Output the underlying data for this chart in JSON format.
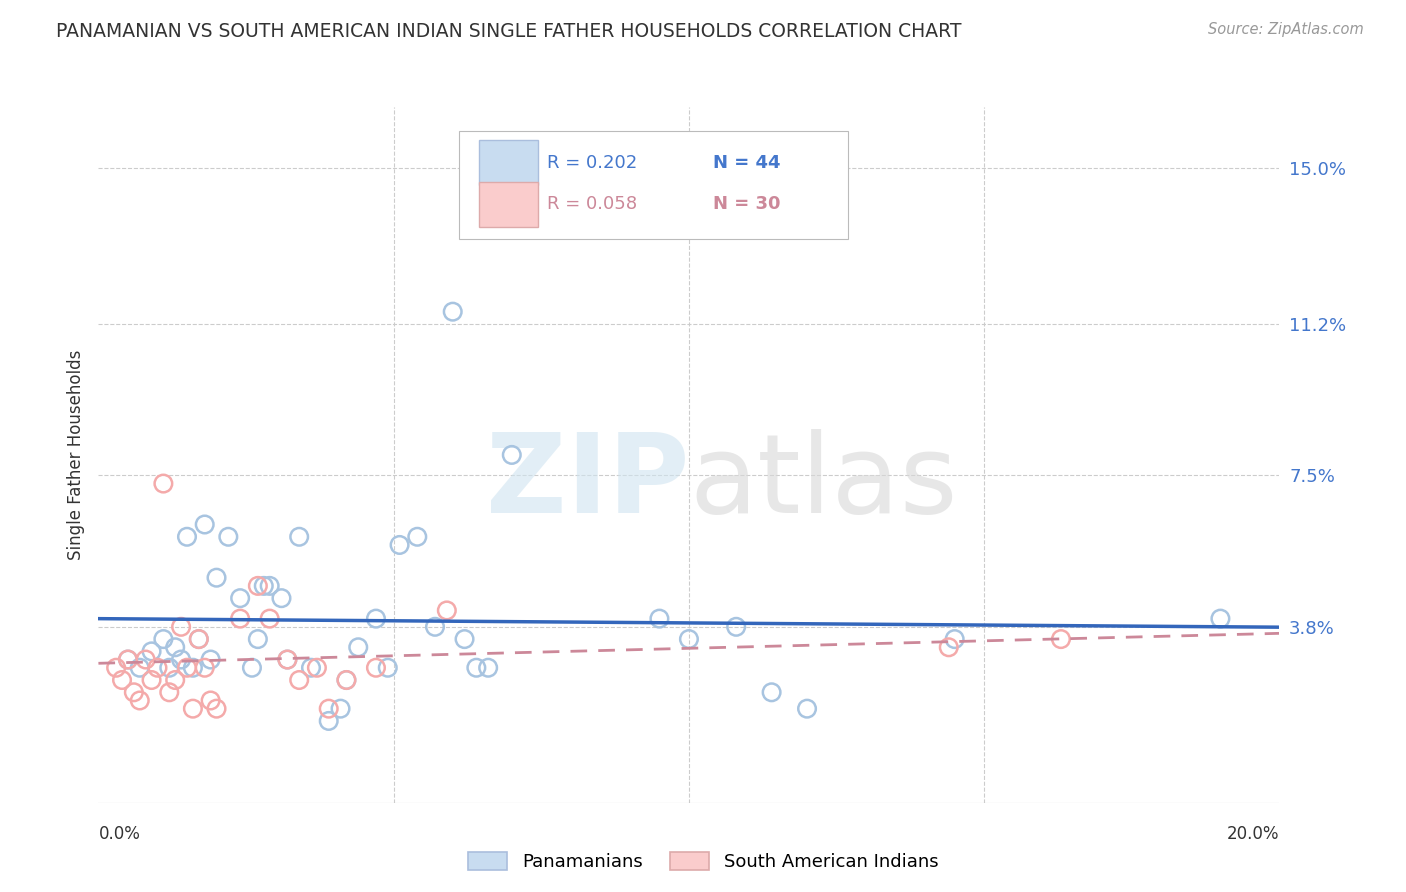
{
  "title": "PANAMANIAN VS SOUTH AMERICAN INDIAN SINGLE FATHER HOUSEHOLDS CORRELATION CHART",
  "source": "Source: ZipAtlas.com",
  "ylabel": "Single Father Households",
  "ytick_labels": [
    "3.8%",
    "7.5%",
    "11.2%",
    "15.0%"
  ],
  "ytick_values": [
    0.038,
    0.075,
    0.112,
    0.15
  ],
  "xlim": [
    0.0,
    0.2
  ],
  "ylim": [
    -0.005,
    0.165
  ],
  "legend1_R": "0.202",
  "legend1_N": "44",
  "legend2_R": "0.058",
  "legend2_N": "30",
  "blue_color": "#A8C4E0",
  "pink_color": "#F4AAAA",
  "blue_fill": "#C8DCF0",
  "pink_fill": "#FACCCC",
  "blue_line_color": "#3366BB",
  "pink_line_color": "#CC8899",
  "text_color_blue": "#4477CC",
  "text_color_dark": "#333333",
  "source_color": "#999999",
  "blue_scatter": [
    [
      0.005,
      0.03
    ],
    [
      0.007,
      0.028
    ],
    [
      0.009,
      0.032
    ],
    [
      0.011,
      0.035
    ],
    [
      0.012,
      0.028
    ],
    [
      0.013,
      0.033
    ],
    [
      0.014,
      0.03
    ],
    [
      0.015,
      0.06
    ],
    [
      0.016,
      0.028
    ],
    [
      0.017,
      0.035
    ],
    [
      0.018,
      0.063
    ],
    [
      0.019,
      0.03
    ],
    [
      0.02,
      0.05
    ],
    [
      0.022,
      0.06
    ],
    [
      0.024,
      0.045
    ],
    [
      0.026,
      0.028
    ],
    [
      0.027,
      0.035
    ],
    [
      0.028,
      0.048
    ],
    [
      0.029,
      0.048
    ],
    [
      0.031,
      0.045
    ],
    [
      0.032,
      0.03
    ],
    [
      0.034,
      0.06
    ],
    [
      0.036,
      0.028
    ],
    [
      0.039,
      0.015
    ],
    [
      0.041,
      0.018
    ],
    [
      0.042,
      0.025
    ],
    [
      0.044,
      0.033
    ],
    [
      0.047,
      0.04
    ],
    [
      0.049,
      0.028
    ],
    [
      0.051,
      0.058
    ],
    [
      0.054,
      0.06
    ],
    [
      0.057,
      0.038
    ],
    [
      0.06,
      0.115
    ],
    [
      0.062,
      0.035
    ],
    [
      0.064,
      0.028
    ],
    [
      0.066,
      0.028
    ],
    [
      0.07,
      0.08
    ],
    [
      0.095,
      0.04
    ],
    [
      0.1,
      0.035
    ],
    [
      0.108,
      0.038
    ],
    [
      0.114,
      0.022
    ],
    [
      0.12,
      0.018
    ],
    [
      0.145,
      0.035
    ],
    [
      0.19,
      0.04
    ]
  ],
  "pink_scatter": [
    [
      0.003,
      0.028
    ],
    [
      0.004,
      0.025
    ],
    [
      0.005,
      0.03
    ],
    [
      0.006,
      0.022
    ],
    [
      0.007,
      0.02
    ],
    [
      0.008,
      0.03
    ],
    [
      0.009,
      0.025
    ],
    [
      0.01,
      0.028
    ],
    [
      0.011,
      0.073
    ],
    [
      0.012,
      0.022
    ],
    [
      0.013,
      0.025
    ],
    [
      0.014,
      0.038
    ],
    [
      0.015,
      0.028
    ],
    [
      0.016,
      0.018
    ],
    [
      0.017,
      0.035
    ],
    [
      0.018,
      0.028
    ],
    [
      0.019,
      0.02
    ],
    [
      0.02,
      0.018
    ],
    [
      0.024,
      0.04
    ],
    [
      0.027,
      0.048
    ],
    [
      0.029,
      0.04
    ],
    [
      0.032,
      0.03
    ],
    [
      0.034,
      0.025
    ],
    [
      0.037,
      0.028
    ],
    [
      0.039,
      0.018
    ],
    [
      0.042,
      0.025
    ],
    [
      0.047,
      0.028
    ],
    [
      0.059,
      0.042
    ],
    [
      0.144,
      0.033
    ],
    [
      0.163,
      0.035
    ]
  ],
  "watermark_zip": "ZIP",
  "watermark_atlas": "atlas",
  "background_color": "#FFFFFF",
  "grid_color": "#CCCCCC"
}
